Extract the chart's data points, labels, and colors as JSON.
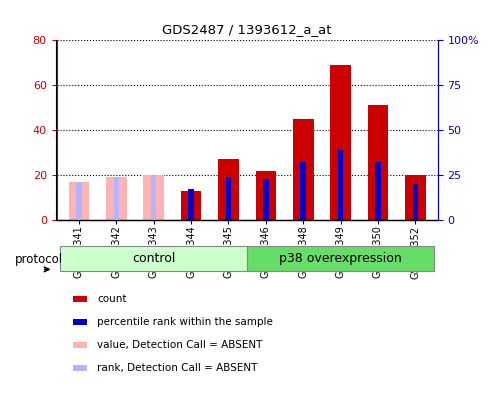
{
  "title": "GDS2487 / 1393612_a_at",
  "samples": [
    "GSM88341",
    "GSM88342",
    "GSM88343",
    "GSM88344",
    "GSM88345",
    "GSM88346",
    "GSM88348",
    "GSM88349",
    "GSM88350",
    "GSM88352"
  ],
  "count_values": [
    null,
    null,
    null,
    13,
    27,
    22,
    45,
    69,
    51,
    20
  ],
  "rank_values": [
    null,
    null,
    null,
    17,
    24,
    23,
    32,
    39,
    32,
    20
  ],
  "absent_count_values": [
    17,
    19,
    20,
    null,
    null,
    null,
    null,
    null,
    null,
    null
  ],
  "absent_rank_values": [
    21,
    24,
    25,
    null,
    null,
    null,
    null,
    null,
    null,
    null
  ],
  "ylim_left": [
    0,
    80
  ],
  "ylim_right": [
    0,
    100
  ],
  "yticks_left": [
    0,
    20,
    40,
    60,
    80
  ],
  "yticks_right": [
    0,
    25,
    50,
    75,
    100
  ],
  "ytick_labels_right": [
    "0",
    "25",
    "50",
    "75",
    "100%"
  ],
  "left_axis_color": "#cc0000",
  "right_axis_color": "#0000cc",
  "bar_color_count": "#cc0000",
  "bar_color_rank": "#0000cc",
  "bar_color_absent_count": "#ffb3b3",
  "bar_color_absent_rank": "#b3b3ff",
  "control_label": "control",
  "p38_label": "p38 overexpression",
  "protocol_label": "protocol",
  "legend_items": [
    {
      "label": "count",
      "color": "#cc0000"
    },
    {
      "label": "percentile rank within the sample",
      "color": "#0000cc"
    },
    {
      "label": "value, Detection Call = ABSENT",
      "color": "#ffb3b3"
    },
    {
      "label": "rank, Detection Call = ABSENT",
      "color": "#b3b3ff"
    }
  ],
  "background_color": "#ffffff",
  "plot_bg_color": "#ffffff",
  "group_box_color_control": "#ccffcc",
  "group_box_color_p38": "#66dd66",
  "wide_bar_width": 0.55,
  "narrow_bar_width": 0.15
}
